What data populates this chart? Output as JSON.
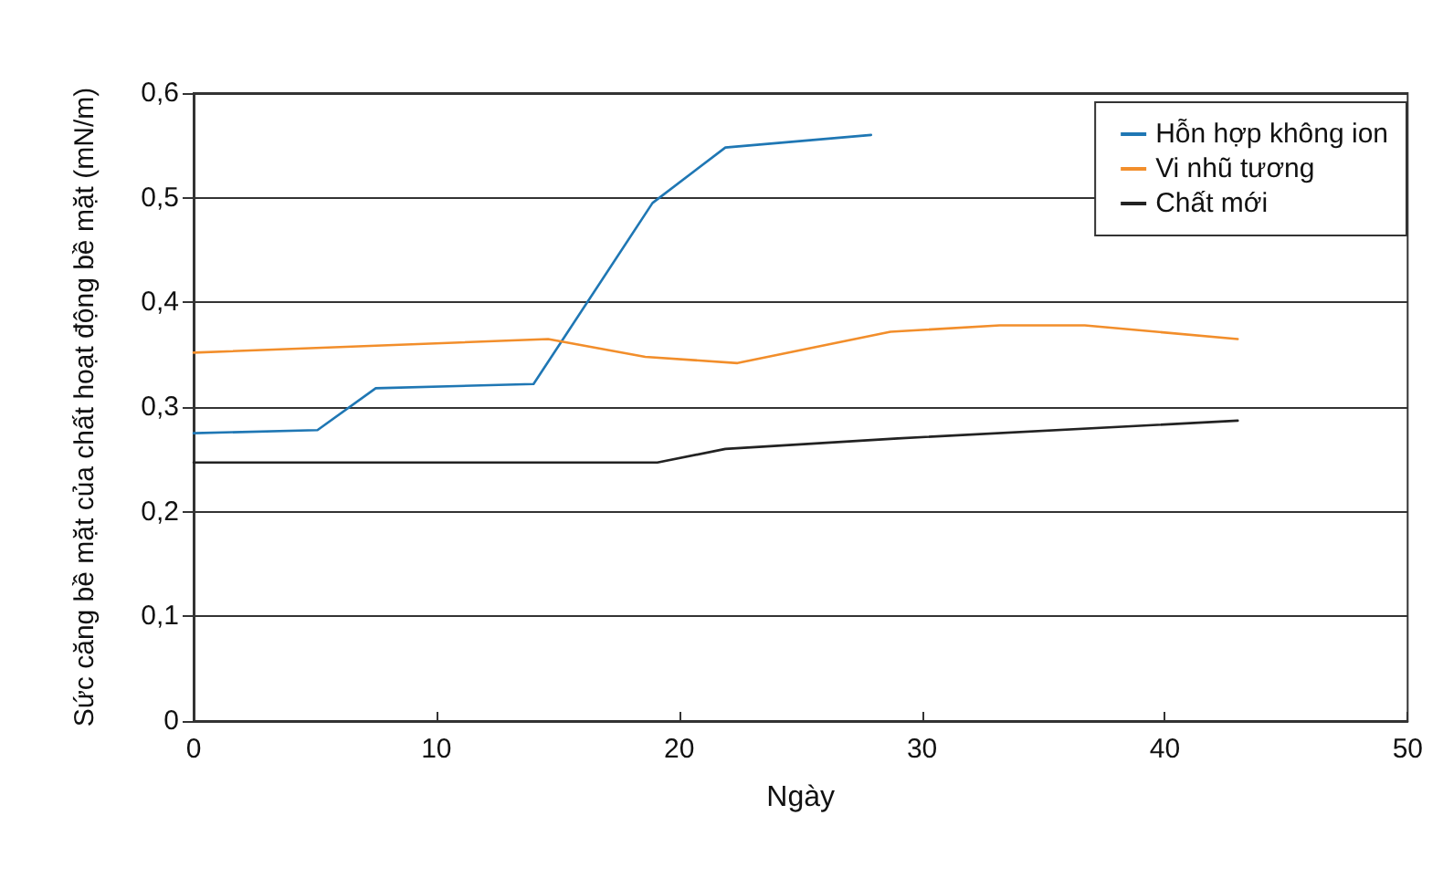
{
  "chart_data": {
    "type": "line",
    "xlabel": "Ngày",
    "ylabel": "Sức căng bề mặt của chất hoạt động bề mặt (mN/m)",
    "xlim": [
      0,
      50
    ],
    "xticks": [
      0,
      10,
      20,
      30,
      40,
      50
    ],
    "ylim": [
      0,
      0.6
    ],
    "yticks": [
      0,
      {
        "value": 0.1,
        "label": "0,1"
      },
      {
        "value": 0.2,
        "label": "0,2"
      },
      {
        "value": 0.3,
        "label": "0,3"
      },
      {
        "value": 0.4,
        "label": "0,4"
      },
      {
        "value": 0.5,
        "label": "0,5"
      },
      {
        "value": 0.6,
        "label": "0,6"
      }
    ],
    "grid": "y",
    "legend": "top right",
    "marker": "none",
    "line_style": "solid",
    "series": [
      {
        "name": "Hỗn hợp không ion",
        "color": "#1f77b4",
        "x": [
          0,
          5.1,
          7.5,
          14,
          18.9,
          21.9,
          27.9
        ],
        "values": [
          0.275,
          0.278,
          0.318,
          0.322,
          0.495,
          0.548,
          0.56
        ]
      },
      {
        "name": "Vi nhũ tương",
        "color": "#f28e2b",
        "x": [
          0,
          14.6,
          18.6,
          22.4,
          28.7,
          33.2,
          36.7,
          43
        ],
        "values": [
          0.352,
          0.365,
          0.348,
          0.342,
          0.372,
          0.378,
          0.378,
          0.365
        ]
      },
      {
        "name": "Chất mới",
        "color": "#222222",
        "x": [
          0,
          19.1,
          21.9,
          29,
          43
        ],
        "values": [
          0.247,
          0.247,
          0.26,
          0.27,
          0.287
        ]
      }
    ]
  }
}
